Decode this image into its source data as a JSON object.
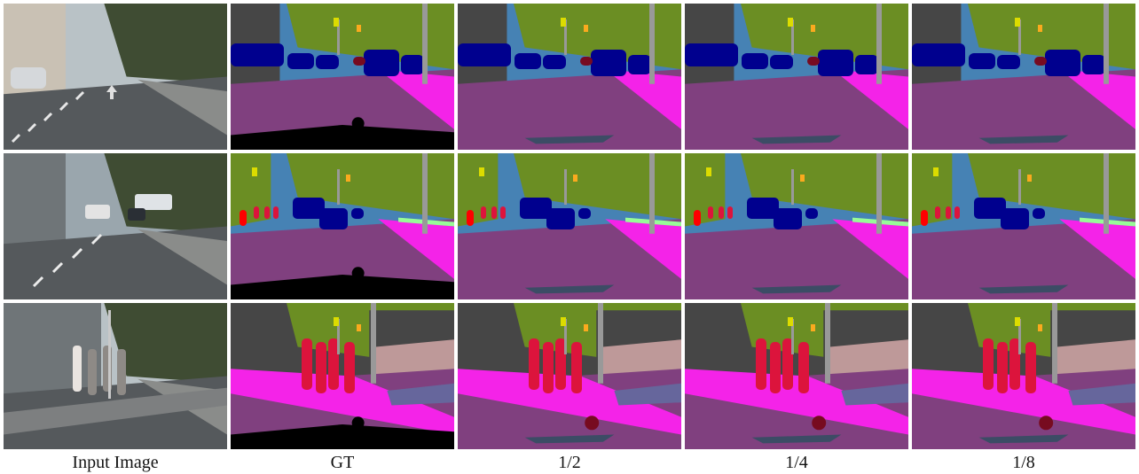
{
  "columns": [
    "Input Image",
    "GT",
    "1/2",
    "1/4",
    "1/8"
  ],
  "palette": {
    "road": "#80407f",
    "sidewalk": "#f423e8",
    "building": "#464646",
    "wall": "#66669c",
    "fence": "#be9999",
    "pole": "#999999",
    "traffic_light": "#faaa1e",
    "traffic_sign": "#dcdc00",
    "vegetation": "#6b8e23",
    "terrain": "#98fb98",
    "sky": "#4682b4",
    "person": "#dc143c",
    "rider": "#ff0000",
    "car": "#00008e",
    "truck": "#000046",
    "bicycle": "#770b20",
    "void": "#000000"
  }
}
